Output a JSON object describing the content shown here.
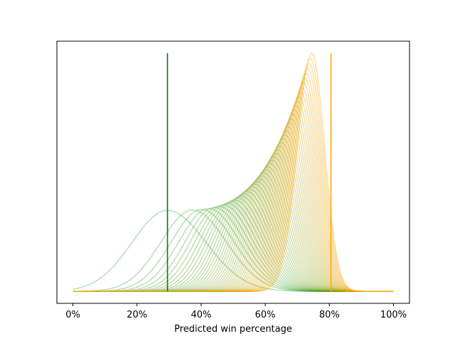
{
  "chart_data": {
    "type": "line",
    "title": "",
    "xlabel": "Predicted win percentage",
    "ylabel": "",
    "xlim": [
      -0.05,
      1.05
    ],
    "ylim": [
      -0.05,
      1.05
    ],
    "x_ticks": [
      0,
      0.2,
      0.4,
      0.6,
      0.8,
      1.0
    ],
    "x_tick_labels": [
      "0%",
      "20%",
      "40%",
      "60%",
      "80%",
      "100%"
    ],
    "y_ticks_visible": false,
    "grid": false,
    "legend": "none",
    "vertical_lines": [
      {
        "x": 0.295,
        "color": "#008000"
      },
      {
        "x": 0.805,
        "color": "#ffa500"
      }
    ],
    "curve_families": [
      {
        "description": "density curves shifting from green to orange as they sharpen",
        "count": 50,
        "color_start": "#2ca02c",
        "color_end": "#ffa500",
        "peak_x_start": 0.295,
        "peak_x_end": 0.745,
        "peak_height_start": 0.34,
        "peak_height_end": 1.0,
        "opacity": 0.35
      }
    ],
    "x_range": [
      0,
      1
    ]
  }
}
